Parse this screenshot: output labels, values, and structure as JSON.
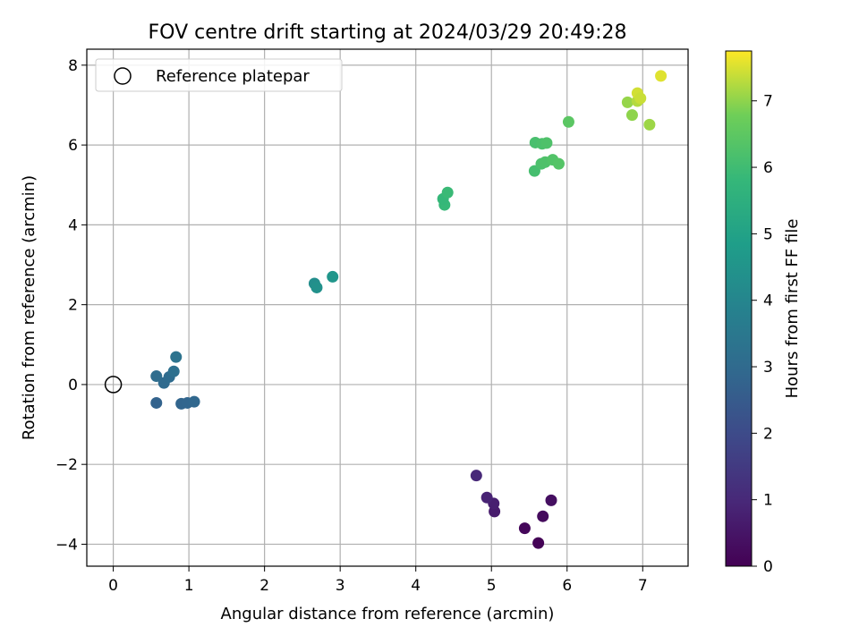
{
  "chart_data": {
    "type": "scatter",
    "title": "FOV centre drift starting at 2024/03/29 20:49:28",
    "xlabel": "Angular distance from reference (arcmin)",
    "ylabel": "Rotation from reference (arcmin)",
    "xlim": [
      -0.35,
      7.6
    ],
    "ylim": [
      -4.55,
      8.4
    ],
    "xticks": [
      0,
      1,
      2,
      3,
      4,
      5,
      6,
      7
    ],
    "yticks": [
      -4,
      -2,
      0,
      2,
      4,
      6,
      8
    ],
    "grid": true,
    "legend": {
      "location": "top-left",
      "entries": [
        "Reference platepar"
      ]
    },
    "reference_point": {
      "x": 0,
      "y": 0,
      "label": "Reference platepar"
    },
    "colorbar": {
      "label": "Hours from first FF file",
      "colormap": "viridis",
      "range": [
        0,
        7.75
      ],
      "ticks": [
        0,
        1,
        2,
        3,
        4,
        5,
        6,
        7
      ]
    },
    "points": [
      {
        "x": 5.62,
        "y": -3.97,
        "t": 0.05
      },
      {
        "x": 5.44,
        "y": -3.6,
        "t": 0.15
      },
      {
        "x": 5.68,
        "y": -3.3,
        "t": 0.25
      },
      {
        "x": 5.79,
        "y": -2.9,
        "t": 0.35
      },
      {
        "x": 5.04,
        "y": -3.18,
        "t": 0.65
      },
      {
        "x": 5.03,
        "y": -2.98,
        "t": 0.75
      },
      {
        "x": 4.94,
        "y": -2.83,
        "t": 0.85
      },
      {
        "x": 4.8,
        "y": -2.28,
        "t": 1.0
      },
      {
        "x": 0.57,
        "y": -0.46,
        "t": 2.75
      },
      {
        "x": 0.9,
        "y": -0.48,
        "t": 2.8
      },
      {
        "x": 0.98,
        "y": -0.46,
        "t": 2.85
      },
      {
        "x": 1.07,
        "y": -0.43,
        "t": 2.9
      },
      {
        "x": 0.67,
        "y": 0.04,
        "t": 3.0
      },
      {
        "x": 0.74,
        "y": 0.19,
        "t": 3.05
      },
      {
        "x": 0.57,
        "y": 0.21,
        "t": 3.1
      },
      {
        "x": 0.8,
        "y": 0.33,
        "t": 3.2
      },
      {
        "x": 0.83,
        "y": 0.69,
        "t": 3.3
      },
      {
        "x": 2.66,
        "y": 2.53,
        "t": 4.3
      },
      {
        "x": 2.69,
        "y": 2.43,
        "t": 4.4
      },
      {
        "x": 2.9,
        "y": 2.7,
        "t": 4.55
      },
      {
        "x": 4.38,
        "y": 4.5,
        "t": 5.85
      },
      {
        "x": 4.36,
        "y": 4.65,
        "t": 5.8
      },
      {
        "x": 4.42,
        "y": 4.81,
        "t": 5.9
      },
      {
        "x": 5.57,
        "y": 5.35,
        "t": 6.1
      },
      {
        "x": 5.66,
        "y": 5.53,
        "t": 6.2
      },
      {
        "x": 5.71,
        "y": 5.57,
        "t": 6.25
      },
      {
        "x": 5.81,
        "y": 5.63,
        "t": 6.3
      },
      {
        "x": 5.89,
        "y": 5.53,
        "t": 6.35
      },
      {
        "x": 5.58,
        "y": 6.06,
        "t": 6.15
      },
      {
        "x": 5.67,
        "y": 6.03,
        "t": 6.2
      },
      {
        "x": 5.73,
        "y": 6.05,
        "t": 6.25
      },
      {
        "x": 6.02,
        "y": 6.58,
        "t": 6.45
      },
      {
        "x": 6.8,
        "y": 7.07,
        "t": 7.05
      },
      {
        "x": 6.86,
        "y": 6.75,
        "t": 7.0
      },
      {
        "x": 6.93,
        "y": 7.1,
        "t": 7.25
      },
      {
        "x": 6.93,
        "y": 7.3,
        "t": 7.45
      },
      {
        "x": 6.97,
        "y": 7.17,
        "t": 7.4
      },
      {
        "x": 7.09,
        "y": 6.51,
        "t": 7.1
      },
      {
        "x": 7.24,
        "y": 7.73,
        "t": 7.55
      }
    ]
  }
}
